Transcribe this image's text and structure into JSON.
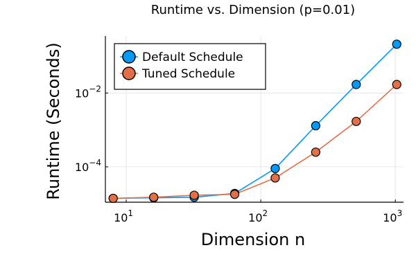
{
  "chart_data": {
    "type": "line",
    "title": "Runtime vs. Dimension (p=0.01)",
    "xlabel": "Dimension n",
    "ylabel": "Runtime (Seconds)",
    "xscale": "log",
    "yscale": "log",
    "xlim": [
      7,
      1150
    ],
    "ylim": [
      1.1e-05,
      0.35
    ],
    "grid": true,
    "legend_position": "top-left",
    "x": [
      8,
      16,
      32,
      64,
      128,
      256,
      512,
      1024
    ],
    "series": [
      {
        "name": "Default Schedule",
        "color": "#009AFA",
        "values": [
          1.4e-05,
          1.45e-05,
          1.5e-05,
          1.9e-05,
          9e-05,
          0.0013,
          0.017,
          0.21
        ]
      },
      {
        "name": "Tuned Schedule",
        "color": "#E26F46",
        "values": [
          1.4e-05,
          1.5e-05,
          1.7e-05,
          1.8e-05,
          5e-05,
          0.00025,
          0.0017,
          0.017
        ]
      }
    ],
    "x_ticks": [
      {
        "value": 10,
        "base": "10",
        "exp": "1"
      },
      {
        "value": 100,
        "base": "10",
        "exp": "2"
      },
      {
        "value": 1000,
        "base": "10",
        "exp": "3"
      }
    ],
    "y_ticks": [
      {
        "value": 0.0001,
        "base": "10",
        "exp": "−4"
      },
      {
        "value": 0.01,
        "base": "10",
        "exp": "−2"
      }
    ]
  }
}
